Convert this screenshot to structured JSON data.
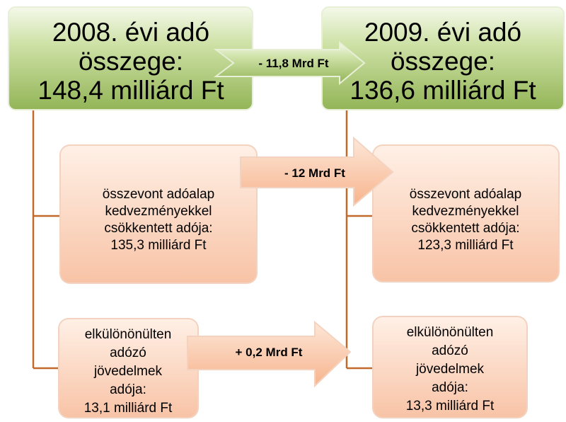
{
  "nodes": [
    {
      "lines": [
        "2008. évi adó",
        "összege:",
        "148,4 milliárd Ft"
      ]
    },
    {
      "lines": [
        "2009. évi adó",
        "összege:",
        "136,6 milliárd Ft"
      ]
    },
    {
      "lines": [
        "összevont adóalap",
        "kedvezményekkel",
        "csökkentett adója:",
        "135,3 milliárd Ft"
      ]
    },
    {
      "lines": [
        "összevont adóalap",
        "kedvezményekkel",
        "csökkentett adója:",
        "123,3 milliárd Ft"
      ]
    },
    {
      "lines": [
        "elkülönönülten",
        "adózó",
        "jövedelmek",
        "adója:",
        "13,1 milliárd Ft"
      ]
    },
    {
      "lines": [
        "elkülönönülten",
        "adózó",
        "jövedelmek",
        "adója:",
        "13,3 milliárd Ft"
      ]
    }
  ],
  "arrows": [
    {
      "label": "- 11,8 Mrd Ft"
    },
    {
      "label": "- 12 Mrd Ft"
    },
    {
      "label": "+ 0,2 Mrd Ft"
    }
  ]
}
